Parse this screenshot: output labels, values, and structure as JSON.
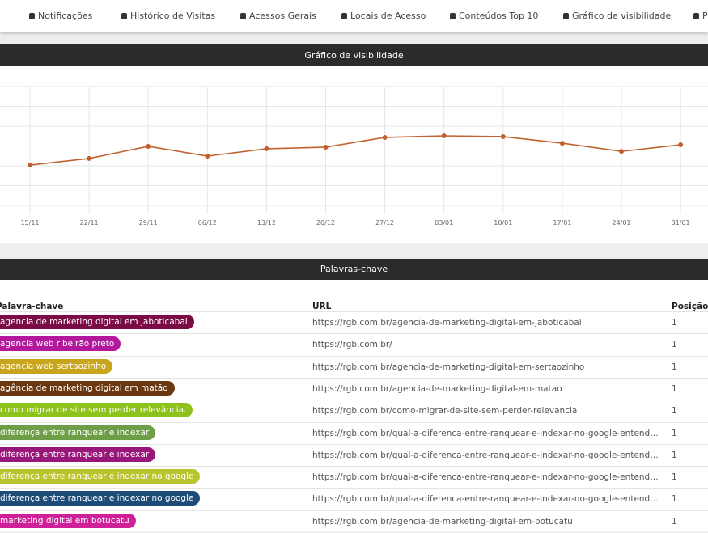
{
  "nav": [
    "Notificações",
    "Histórico de Visitas",
    "Acessos Gerais",
    "Locais de Acesso",
    "Conteúdos Top 10",
    "Gráfico de visibilidade",
    "P"
  ],
  "chart_data": {
    "type": "line",
    "title": "Gráfico de visibilidade",
    "categories": [
      "15/11",
      "22/11",
      "29/11",
      "06/12",
      "13/12",
      "20/12",
      "27/12",
      "03/01",
      "10/01",
      "17/01",
      "24/01",
      "31/01"
    ],
    "values": [
      2.04,
      2.37,
      2.98,
      2.49,
      2.86,
      2.94,
      3.43,
      3.51,
      3.47,
      3.14,
      2.73,
      3.06
    ],
    "color": "#c0622f",
    "ylim": [
      0,
      6
    ],
    "yticks": [
      0,
      1,
      2,
      3,
      4,
      5,
      6
    ],
    "grid": true
  },
  "keywords": {
    "title": "Palavras-chave",
    "columns": [
      "Palavra-chave",
      "URL",
      "Posição"
    ],
    "rows": [
      [
        "agencia de marketing digital em jaboticabal",
        "https://rgb.com.br/agencia-de-marketing-digital-em-jaboticabal",
        1
      ],
      [
        "agencia web ribeirão preto",
        "https://rgb.com.br/",
        1
      ],
      [
        "agencia web sertaozinho",
        "https://rgb.com.br/agencia-de-marketing-digital-em-sertaozinho",
        1
      ],
      [
        "agência de marketing digital em matão",
        "https://rgb.com.br/agencia-de-marketing-digital-em-matao",
        1
      ],
      [
        "como migrar de site sem perder relevância.",
        "https://rgb.com.br/como-migrar-de-site-sem-perder-relevancia",
        1
      ],
      [
        "diferença entre ranquear e indexar",
        "https://rgb.com.br/qual-a-diferenca-entre-ranquear-e-indexar-no-google-entend…",
        1
      ],
      [
        "diferença entre ranquear e indexar",
        "https://rgb.com.br/qual-a-diferenca-entre-ranquear-e-indexar-no-google-entend…",
        1
      ],
      [
        "diferença entre ranquear e indexar no google",
        "https://rgb.com.br/qual-a-diferenca-entre-ranquear-e-indexar-no-google-entend…",
        1
      ],
      [
        "diferença entre ranquear e indexar no google",
        "https://rgb.com.br/qual-a-diferenca-entre-ranquear-e-indexar-no-google-entend…",
        1
      ],
      [
        "marketing digital em botucatu",
        "https://rgb.com.br/agencia-de-marketing-digital-em-botucatu",
        1
      ]
    ],
    "tag_colors": [
      "#7a0b45",
      "#b3179c",
      "#c8a51d",
      "#6a3710",
      "#8cc21b",
      "#6e9f48",
      "#99177a",
      "#b9c32b",
      "#1e4c78",
      "#cf1f99"
    ]
  }
}
